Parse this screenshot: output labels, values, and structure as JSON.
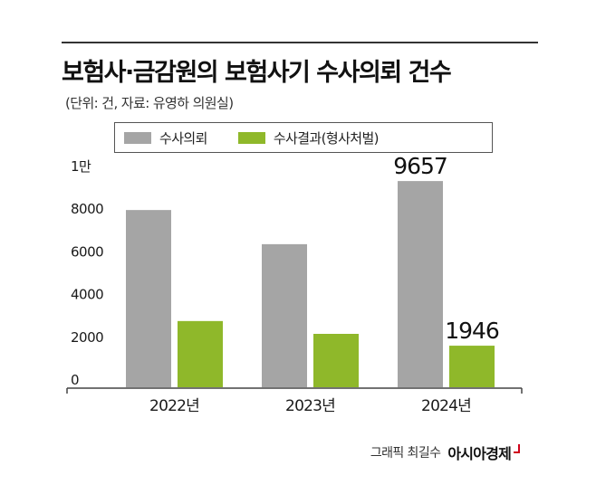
{
  "header": {
    "title": "보험사·금감원의 보험사기 수사의뢰 건수",
    "subtitle": "(단위: 건, 자료: 유영하 의원실)"
  },
  "colors": {
    "series1": "#a5a5a5",
    "series2": "#8fb82a",
    "axis": "#444444",
    "text": "#1a1a1a"
  },
  "chart_data": {
    "type": "bar",
    "categories": [
      "2022년",
      "2023년",
      "2024년"
    ],
    "series": [
      {
        "name": "수사의뢰",
        "values": [
          8300,
          6700,
          9657
        ]
      },
      {
        "name": "수사결과(형사처벌)",
        "values": [
          3100,
          2500,
          1946
        ]
      }
    ],
    "ylim": [
      0,
      10000
    ],
    "y_ticks": [
      {
        "value": 0,
        "label": "0"
      },
      {
        "value": 2000,
        "label": "2000"
      },
      {
        "value": 4000,
        "label": "4000"
      },
      {
        "value": 6000,
        "label": "6000"
      },
      {
        "value": 8000,
        "label": "8000"
      },
      {
        "value": 10000,
        "label": "1만"
      }
    ],
    "annotations": [
      {
        "series": 0,
        "index": 2,
        "text": "9657"
      },
      {
        "series": 1,
        "index": 2,
        "text": "1946"
      }
    ],
    "legend": "top",
    "grid": false
  },
  "credit": {
    "artist": "그래픽 최길수",
    "brand": "아시아경제"
  }
}
